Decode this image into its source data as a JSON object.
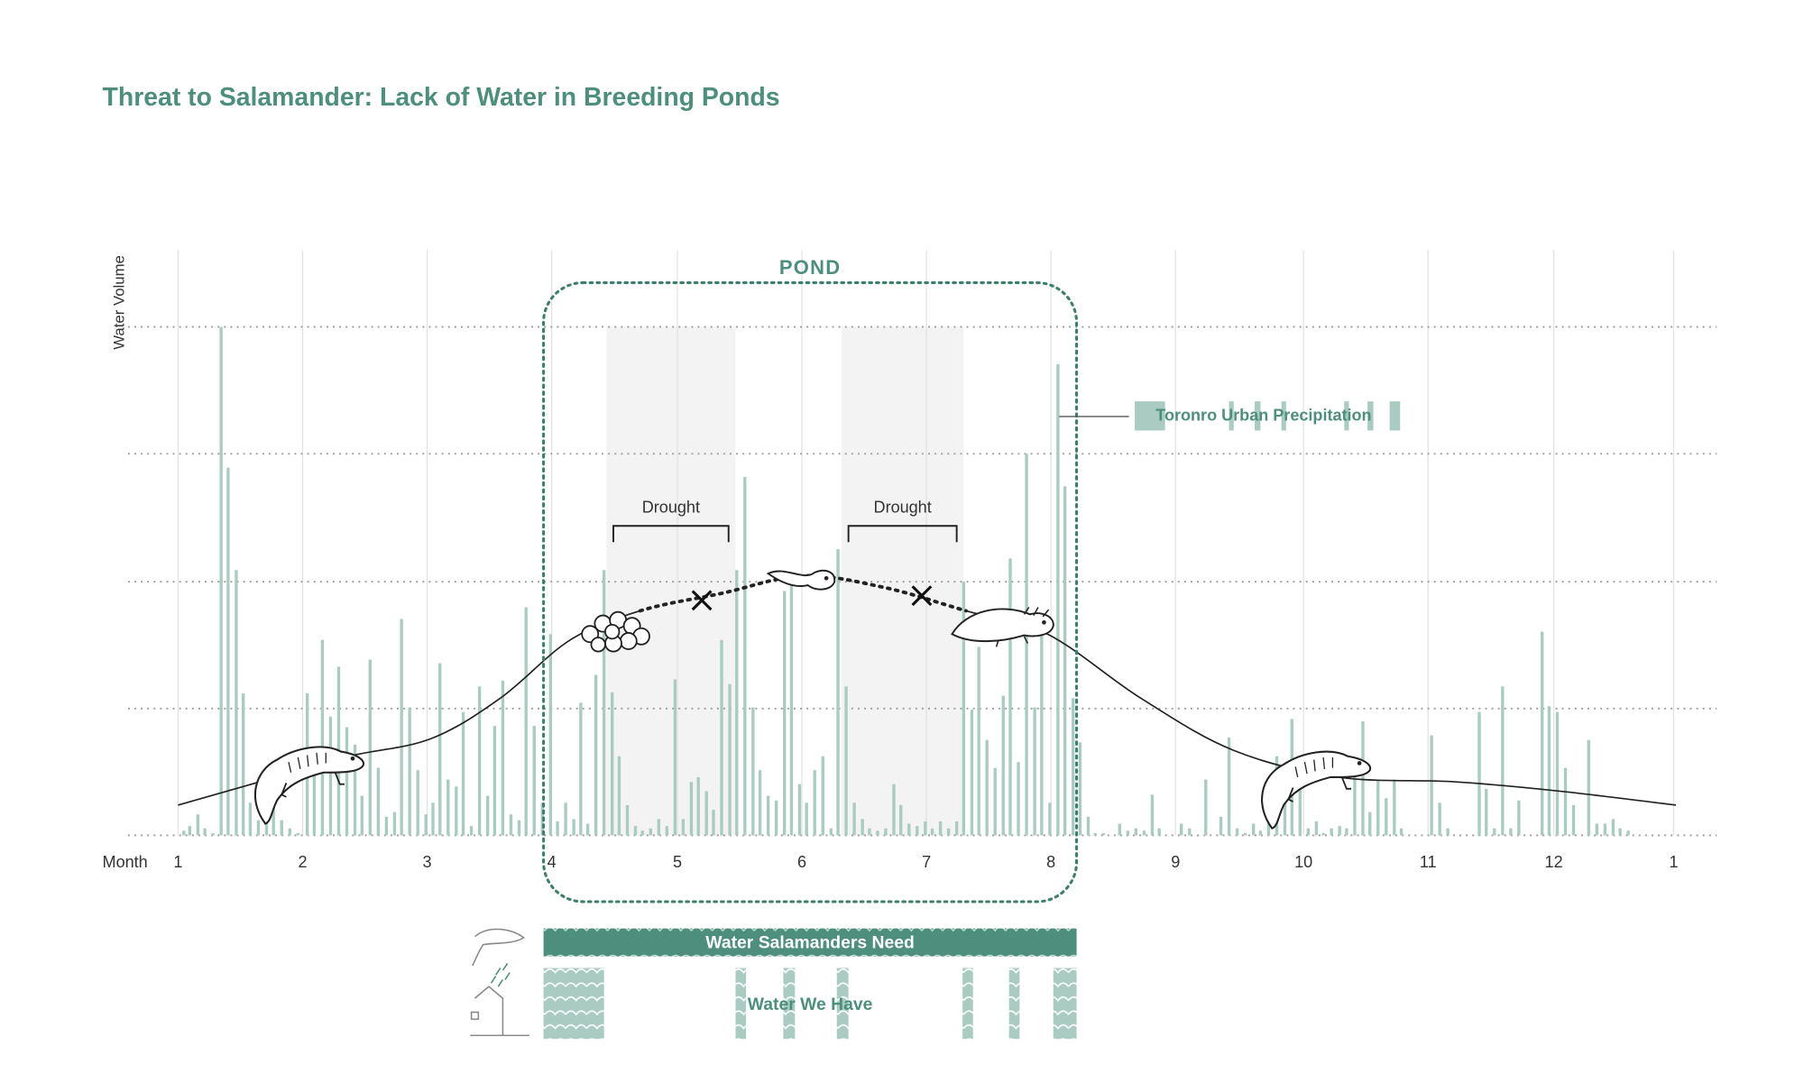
{
  "chart_data": {
    "type": "bar",
    "title": "Threat to Salamander: Lack of Water in Breeding Ponds",
    "y_label": "Water Volume",
    "x_label": "Month",
    "xlim": [
      -43,
      1322
    ],
    "ylim": [
      0,
      503
    ],
    "xticks": [
      {
        "value": 0,
        "label": "1"
      },
      {
        "value": 107,
        "label": "2"
      },
      {
        "value": 214,
        "label": "3"
      },
      {
        "value": 321,
        "label": "4"
      },
      {
        "value": 429,
        "label": "5"
      },
      {
        "value": 536,
        "label": "6"
      },
      {
        "value": 643,
        "label": "7"
      },
      {
        "value": 750,
        "label": "8"
      },
      {
        "value": 857,
        "label": "9"
      },
      {
        "value": 967,
        "label": "10"
      },
      {
        "value": 1074,
        "label": "11"
      },
      {
        "value": 1182,
        "label": "12"
      },
      {
        "value": 1285,
        "label": "1"
      }
    ],
    "yticks": [
      0,
      109,
      218,
      328,
      437
    ],
    "grid": true,
    "series": [
      {
        "name": "Toronro Urban Precipitation",
        "color": "#a9cbc2",
        "x": [
          5,
          10,
          17,
          23,
          30,
          37,
          43,
          50,
          56,
          62,
          69,
          76,
          82,
          89,
          96,
          103,
          111,
          117,
          124,
          131,
          138,
          145,
          152,
          158,
          165,
          172,
          179,
          186,
          192,
          199,
          206,
          213,
          219,
          225,
          232,
          239,
          245,
          252,
          259,
          266,
          272,
          279,
          286,
          293,
          299,
          306,
          313,
          320,
          326,
          333,
          340,
          346,
          352,
          359,
          366,
          373,
          379,
          386,
          393,
          399,
          406,
          413,
          420,
          427,
          434,
          441,
          447,
          454,
          460,
          467,
          474,
          480,
          487,
          494,
          500,
          507,
          514,
          521,
          527,
          534,
          540,
          547,
          554,
          561,
          567,
          574,
          581,
          588,
          594,
          601,
          608,
          615,
          621,
          628,
          635,
          642,
          648,
          655,
          662,
          669,
          675,
          682,
          688,
          695,
          702,
          709,
          715,
          722,
          729,
          736,
          742,
          749,
          756,
          762,
          769,
          775,
          782,
          788,
          795,
          809,
          816,
          823,
          830,
          837,
          843,
          862,
          869,
          883,
          896,
          903,
          910,
          917,
          924,
          930,
          937,
          944,
          951,
          957,
          964,
          971,
          978,
          984,
          991,
          998,
          1004,
          1011,
          1018,
          1024,
          1031,
          1038,
          1045,
          1051,
          1077,
          1084,
          1091,
          1118,
          1124,
          1131,
          1138,
          1145,
          1152,
          1172,
          1178,
          1185,
          1192,
          1199,
          1212,
          1219,
          1226,
          1233,
          1239,
          1246
        ],
        "values": [
          4,
          8,
          18,
          6,
          2,
          437,
          316,
          228,
          122,
          28,
          13,
          50,
          28,
          13,
          6,
          2,
          122,
          68,
          168,
          102,
          145,
          93,
          78,
          34,
          151,
          58,
          16,
          20,
          186,
          110,
          56,
          18,
          28,
          148,
          48,
          42,
          106,
          8,
          128,
          34,
          94,
          133,
          18,
          13,
          196,
          94,
          28,
          173,
          12,
          28,
          14,
          114,
          10,
          138,
          228,
          123,
          68,
          26,
          8,
          4,
          6,
          14,
          8,
          134,
          14,
          46,
          50,
          38,
          22,
          168,
          130,
          228,
          308,
          110,
          56,
          34,
          30,
          210,
          218,
          44,
          28,
          56,
          68,
          6,
          246,
          128,
          28,
          14,
          6,
          4,
          6,
          44,
          26,
          10,
          8,
          12,
          6,
          12,
          6,
          12,
          218,
          108,
          162,
          82,
          58,
          120,
          238,
          63,
          328,
          110,
          178,
          28,
          405,
          300,
          118,
          80,
          16,
          2,
          2,
          10,
          4,
          6,
          4,
          35,
          6,
          10,
          6,
          48,
          16,
          84,
          6,
          2,
          10,
          4,
          12,
          68,
          38,
          100,
          48,
          6,
          12,
          2,
          6,
          8,
          6,
          58,
          98,
          20,
          48,
          32,
          48,
          6,
          86,
          28,
          6,
          106,
          40,
          6,
          128,
          6,
          30,
          175,
          111,
          106,
          58,
          26,
          82,
          10,
          10,
          14,
          6,
          4
        ]
      }
    ],
    "water_curve": {
      "color": "#222222",
      "x": [
        0,
        77,
        147,
        217,
        277,
        337,
        397,
        467,
        537,
        607,
        677,
        747,
        827,
        907,
        997,
        1097,
        1187,
        1287
      ],
      "values": [
        26,
        48,
        68,
        83,
        118,
        168,
        193,
        208,
        223,
        213,
        193,
        173,
        118,
        73,
        50,
        46,
        38,
        26
      ],
      "dotted_between": [
        395,
        680
      ]
    },
    "failure_marks": {
      "x": [
        450,
        639
      ],
      "values": [
        202,
        206
      ]
    },
    "droughts": [
      {
        "label": "Drought",
        "range": [
          368,
          479
        ]
      },
      {
        "label": "Drought",
        "range": [
          570,
          675
        ]
      }
    ],
    "pond": {
      "label": "POND",
      "range": [
        314,
        772
      ]
    },
    "water_need": {
      "label": "Water Salamanders Need",
      "range": [
        314,
        772
      ]
    },
    "water_have": {
      "label": "Water We Have",
      "ranges": [
        [
          314,
          366
        ],
        [
          479,
          488
        ],
        [
          520,
          530
        ],
        [
          566,
          576
        ],
        [
          674,
          683
        ],
        [
          714,
          723
        ],
        [
          752,
          772
        ]
      ]
    }
  }
}
